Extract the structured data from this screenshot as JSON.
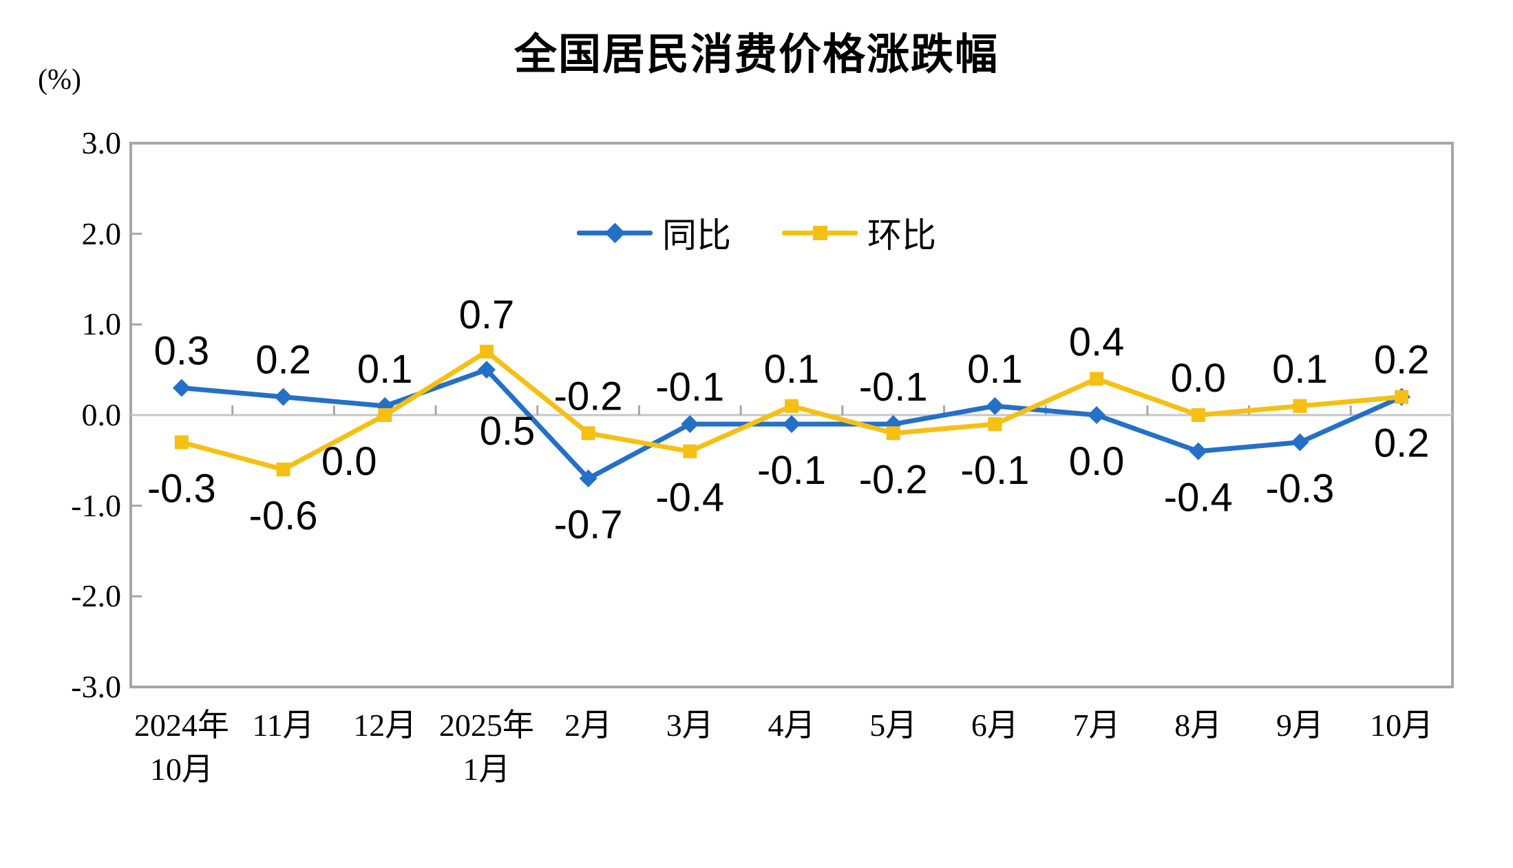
{
  "title": "全国居民消费价格涨跌幅",
  "y_axis_unit_label": "(%)",
  "chart_data": {
    "type": "line",
    "title": "全国居民消费价格涨跌幅",
    "y_axis_unit": "(%)",
    "categories": [
      "2024年10月",
      "11月",
      "12月",
      "2025年1月",
      "2月",
      "3月",
      "4月",
      "5月",
      "6月",
      "7月",
      "8月",
      "9月",
      "10月"
    ],
    "categories_display": [
      [
        "2024年",
        "10月"
      ],
      [
        "11月"
      ],
      [
        "12月"
      ],
      [
        "2025年",
        "1月"
      ],
      [
        "2月"
      ],
      [
        "3月"
      ],
      [
        "4月"
      ],
      [
        "5月"
      ],
      [
        "6月"
      ],
      [
        "7月"
      ],
      [
        "8月"
      ],
      [
        "9月"
      ],
      [
        "10月"
      ]
    ],
    "series": [
      {
        "name": "同比",
        "marker": "diamond",
        "color": "#2470C8",
        "values": [
          0.3,
          0.2,
          0.1,
          0.5,
          -0.7,
          -0.1,
          -0.1,
          -0.1,
          0.1,
          0.0,
          -0.4,
          -0.3,
          0.2
        ],
        "label_side": [
          "above",
          "above",
          "above",
          "below",
          "below",
          "above",
          "below",
          "above",
          "above",
          "below",
          "below",
          "below",
          "below"
        ]
      },
      {
        "name": "环比",
        "marker": "square",
        "color": "#F5C013",
        "values": [
          -0.3,
          -0.6,
          0.0,
          0.7,
          -0.2,
          -0.4,
          0.1,
          -0.2,
          -0.1,
          0.4,
          0.0,
          0.1,
          0.2
        ],
        "label_side": [
          "below",
          "below",
          "below",
          "above",
          "above",
          "below",
          "above",
          "below",
          "below",
          "above",
          "above",
          "above",
          "above"
        ]
      }
    ],
    "ylim": [
      -3.0,
      3.0
    ],
    "ytick_values": [
      3,
      2,
      1,
      0,
      -1,
      -2,
      -3
    ],
    "ytick_labels": [
      "3.0",
      "2.0",
      "1.0",
      "0.0",
      "-1.0",
      "-2.0",
      "-3.0"
    ],
    "grid": false,
    "legend_position": "top-center-inside",
    "data_labels": true,
    "colors": {
      "frame": "#A6A6A6",
      "zero_line": "#C6C6C6",
      "tick": "#A6A6A6",
      "text": "#000000"
    }
  }
}
